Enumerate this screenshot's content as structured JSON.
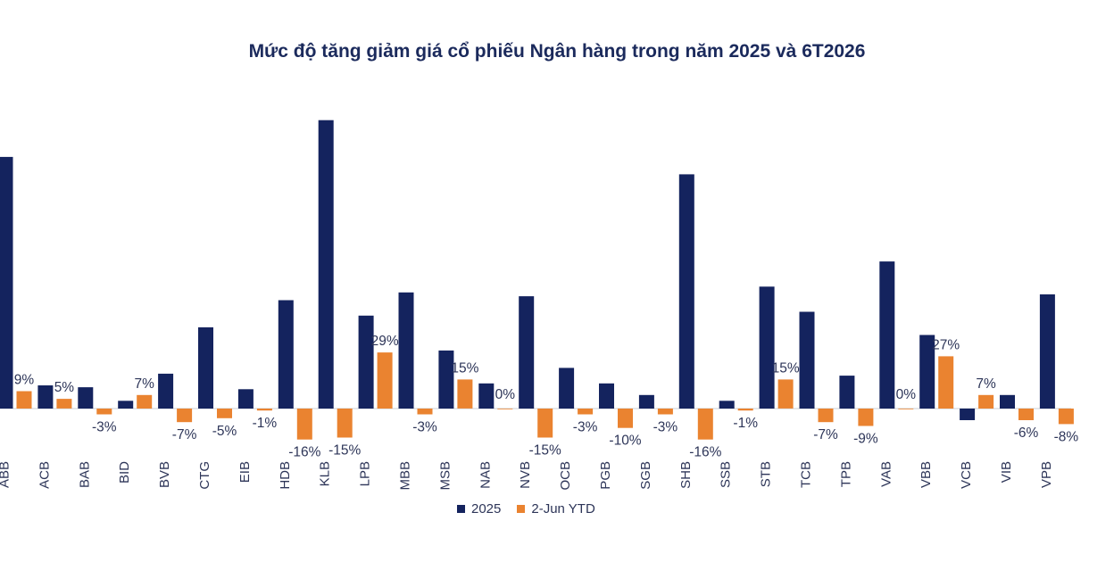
{
  "title": "Mức độ tăng giảm giá cổ phiếu Ngân hàng trong năm 2025 và 6T2026",
  "chart_data": {
    "type": "bar",
    "title": "Mức độ tăng giảm giá cổ phiếu Ngân hàng trong năm 2025 và 6T2026",
    "categories": [
      "ABB",
      "ACB",
      "BAB",
      "BID",
      "BVB",
      "CTG",
      "EIB",
      "HDB",
      "KLB",
      "LPB",
      "MBB",
      "MSB",
      "NAB",
      "NVB",
      "OCB",
      "PGB",
      "SGB",
      "SHB",
      "SSB",
      "STB",
      "TCB",
      "TPB",
      "VAB",
      "VBB",
      "VCB",
      "VIB",
      "VPB"
    ],
    "series": [
      {
        "name": "2025",
        "color": "#14235e",
        "values": [
          130,
          12,
          11,
          4,
          18,
          42,
          10,
          56,
          149,
          48,
          60,
          30,
          13,
          58,
          21,
          13,
          7,
          121,
          4,
          63,
          50,
          17,
          76,
          38,
          -6,
          7,
          59
        ]
      },
      {
        "name": "2-Jun YTD",
        "color": "#ea8330",
        "values": [
          9,
          5,
          -3,
          7,
          -7,
          -5,
          -1,
          -16,
          -15,
          29,
          -3,
          15,
          0,
          -15,
          -3,
          -10,
          -3,
          -16,
          -1,
          15,
          -7,
          -9,
          0,
          27,
          7,
          -6,
          -8
        ],
        "labels": [
          "9%",
          "5%",
          "-3%",
          "7%",
          "-7%",
          "-5%",
          "-1%",
          "-16%",
          "-15%",
          "29%",
          "-3%",
          "15%",
          "0%",
          "-15%",
          "-3%",
          "-10%",
          "-3%",
          "-16%",
          "-1%",
          "15%",
          "-7%",
          "-9%",
          "0%",
          "27%",
          "7%",
          "-6%",
          "-8%"
        ]
      }
    ],
    "xlabel": "",
    "ylabel": "",
    "grid": false,
    "legend": "bottom"
  }
}
